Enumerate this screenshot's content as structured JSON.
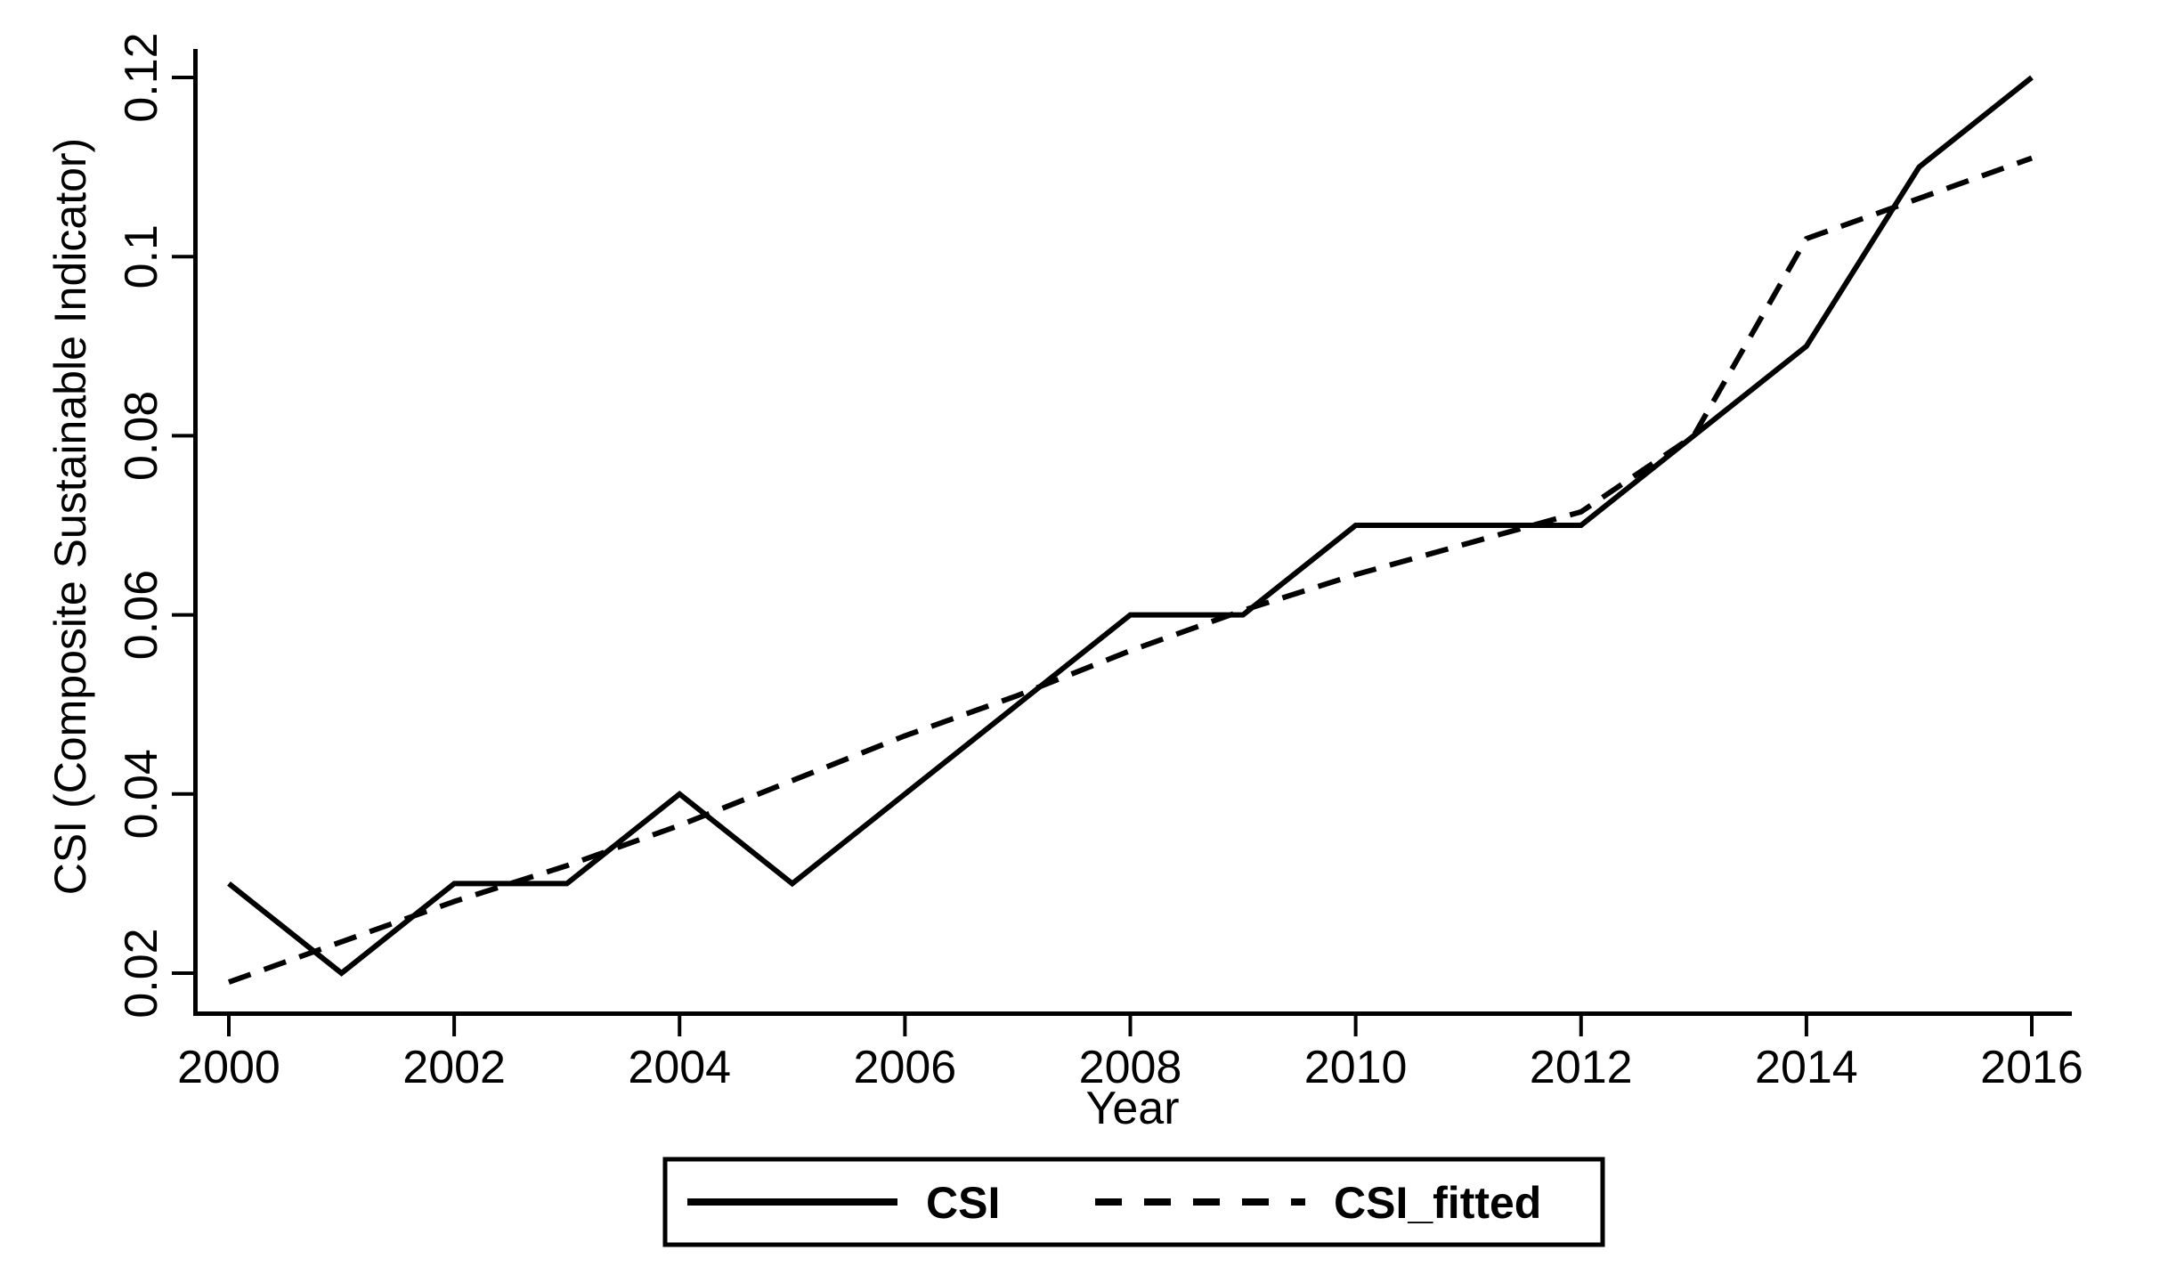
{
  "figure": {
    "background": "#ffffff",
    "axis_color": "#000000",
    "text_color": "#000000"
  },
  "chart_data": {
    "type": "line",
    "title": "",
    "xlabel": "Year",
    "ylabel": "CSI (Composite Sustainable Indicator)",
    "xlim": [
      2000,
      2016
    ],
    "ylim": [
      0.02,
      0.12
    ],
    "grid": false,
    "legend_position": "bottom-center",
    "x": [
      2000,
      2001,
      2002,
      2003,
      2004,
      2005,
      2006,
      2007,
      2008,
      2009,
      2010,
      2011,
      2012,
      2013,
      2014,
      2015,
      2016
    ],
    "x_ticks": [
      2000,
      2002,
      2004,
      2006,
      2008,
      2010,
      2012,
      2014,
      2016
    ],
    "x_tick_labels": [
      "2000",
      "2002",
      "2004",
      "2006",
      "2008",
      "2010",
      "2012",
      "2014",
      "2016"
    ],
    "y_ticks": [
      0.02,
      0.04,
      0.06,
      0.08,
      0.1,
      0.12
    ],
    "y_tick_labels": [
      "0.02",
      "0.04",
      "0.06",
      "0.08",
      "0.1",
      "0.12"
    ],
    "series": [
      {
        "name": "CSI",
        "line_style": "solid",
        "color": "#000000",
        "values": [
          0.03,
          0.02,
          0.03,
          0.03,
          0.04,
          0.03,
          0.04,
          0.05,
          0.06,
          0.06,
          0.07,
          0.07,
          0.07,
          0.08,
          0.09,
          0.11,
          0.12
        ]
      },
      {
        "name": "CSI_fitted",
        "line_style": "dashed",
        "color": "#000000",
        "values": [
          0.019,
          0.0235,
          0.028,
          0.032,
          0.0365,
          0.0415,
          0.0465,
          0.051,
          0.056,
          0.0605,
          0.0645,
          0.068,
          0.0715,
          0.08,
          0.102,
          0.1065,
          0.111
        ]
      }
    ]
  },
  "legend": {
    "items": [
      {
        "label": "CSI",
        "line_style": "solid"
      },
      {
        "label": "CSI_fitted",
        "line_style": "dashed"
      }
    ]
  }
}
